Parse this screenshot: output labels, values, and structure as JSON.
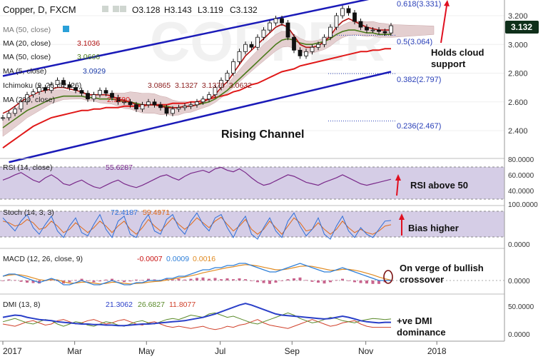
{
  "header": {
    "symbol": "Copper, D, FXCM",
    "open": "O3.128",
    "high": "H3.143",
    "low": "L3.119",
    "close": "C3.132"
  },
  "price_panel": {
    "legend": [
      {
        "label": "MA (50, close)",
        "value": ""
      },
      {
        "label": "MA (20, close)",
        "value": "3.1036"
      },
      {
        "label": "MA (50, close)",
        "value": "3.0666"
      },
      {
        "label": "MA (5, close)",
        "value": "3.0929"
      },
      {
        "label": "Ichimoku (9, 26, 52, 26)",
        "value": "3.0865  3.1327  3.1370  3.0632"
      },
      {
        "label": "MA (200, close)",
        "value": "2.9590"
      }
    ],
    "fib_levels": [
      {
        "label": "0.618(3.331)",
        "value": 3.331
      },
      {
        "label": "0.5(3.064)",
        "value": 3.064
      },
      {
        "label": "0.382(2.797)",
        "value": 2.797
      },
      {
        "label": "0.236(2.467)",
        "value": 2.467
      }
    ],
    "last_price_badge": "3.132",
    "annotations": {
      "channel": "Rising Channel",
      "cloud": "Holds cloud support"
    }
  },
  "rsi_panel": {
    "label": "RSI (14, close)",
    "value": "55.6287",
    "annotation": "RSI above 50",
    "ticks": [
      "80.0000",
      "60.0000",
      "40.0000"
    ]
  },
  "stoch_panel": {
    "label": "Stoch (14, 3, 3)",
    "values": [
      "72.4187",
      "59.4971"
    ],
    "annotation": "Bias higher",
    "ticks": [
      "100.0000",
      "0.0000"
    ]
  },
  "macd_panel": {
    "label": "MACD (12, 26, close, 9)",
    "values": [
      "-0.0007",
      "0.0009",
      "0.0016"
    ],
    "annotation": "On verge of bullish crossover",
    "ticks": [
      "0.0000"
    ]
  },
  "dmi_panel": {
    "label": "DMI (13, 8)",
    "values": [
      "21.3062",
      "26.6827",
      "11.8077"
    ],
    "annotation": "+ve DMI dominance",
    "ticks": [
      "50.0000",
      "0.0000"
    ]
  },
  "colors": {
    "price_candle": "#111111",
    "ma_red": "#b01010",
    "ma_olive": "#4a7a1a",
    "ma200": "#e01818",
    "channel": "#1a1ab8",
    "cloud": "#e4cfd0",
    "rsi_band": "#d5cde6",
    "rsi_line": "#7a2a8a",
    "stoch_blue": "#2e6fd8",
    "stoch_orange": "#e06a1a",
    "macd_blue": "#2e7fd8",
    "macd_orange": "#e08a20",
    "dmi_blue": "#2a3fc8",
    "dmi_green": "#5a8a2a",
    "dmi_red": "#d0402a",
    "badge_bg": "#0f2f1a",
    "annotation_arrow": "#e01020"
  },
  "chart_data": {
    "type": "line",
    "title": "Copper, D, FXCM",
    "x_ticks": [
      "2017",
      "Mar",
      "May",
      "Jul",
      "Sep",
      "Nov",
      "2018"
    ],
    "y_ticks": [
      3.2,
      3.0,
      2.8,
      2.6,
      2.4
    ],
    "y_range": [
      2.18,
      3.33
    ],
    "ohlc_last": {
      "open": 3.128,
      "high": 3.143,
      "low": 3.119,
      "close": 3.132
    },
    "price_series": [
      2.49,
      2.52,
      2.55,
      2.6,
      2.65,
      2.67,
      2.7,
      2.68,
      2.72,
      2.75,
      2.72,
      2.7,
      2.68,
      2.66,
      2.62,
      2.65,
      2.68,
      2.66,
      2.63,
      2.6,
      2.6,
      2.58,
      2.55,
      2.58,
      2.6,
      2.58,
      2.56,
      2.52,
      2.55,
      2.56,
      2.57,
      2.58,
      2.6,
      2.62,
      2.65,
      2.7,
      2.75,
      2.8,
      2.88,
      2.95,
      3.0,
      2.98,
      3.05,
      3.1,
      3.15,
      3.18,
      3.15,
      3.05,
      2.96,
      2.92,
      2.95,
      2.98,
      3.0,
      3.05,
      3.12,
      3.2,
      3.25,
      3.22,
      3.16,
      3.12,
      3.1,
      3.1,
      3.09,
      3.08,
      3.13
    ],
    "ma_red": [
      2.52,
      2.54,
      2.57,
      2.6,
      2.63,
      2.65,
      2.67,
      2.68,
      2.69,
      2.7,
      2.7,
      2.69,
      2.68,
      2.67,
      2.65,
      2.65,
      2.65,
      2.65,
      2.64,
      2.62,
      2.61,
      2.6,
      2.58,
      2.58,
      2.58,
      2.58,
      2.57,
      2.56,
      2.56,
      2.56,
      2.57,
      2.57,
      2.58,
      2.6,
      2.62,
      2.65,
      2.7,
      2.74,
      2.8,
      2.86,
      2.92,
      2.96,
      3.0,
      3.04,
      3.08,
      3.12,
      3.14,
      3.12,
      3.06,
      3.0,
      2.98,
      2.98,
      2.99,
      3.02,
      3.06,
      3.12,
      3.16,
      3.18,
      3.16,
      3.14,
      3.12,
      3.11,
      3.1,
      3.1,
      3.1
    ],
    "ma_olive": [
      2.42,
      2.45,
      2.48,
      2.51,
      2.54,
      2.56,
      2.58,
      2.6,
      2.62,
      2.63,
      2.64,
      2.64,
      2.64,
      2.64,
      2.63,
      2.63,
      2.62,
      2.62,
      2.62,
      2.61,
      2.6,
      2.6,
      2.59,
      2.58,
      2.58,
      2.58,
      2.57,
      2.57,
      2.56,
      2.56,
      2.57,
      2.57,
      2.58,
      2.59,
      2.6,
      2.62,
      2.65,
      2.68,
      2.72,
      2.76,
      2.8,
      2.84,
      2.88,
      2.92,
      2.96,
      3.0,
      3.03,
      3.04,
      3.03,
      3.01,
      3.0,
      3.0,
      3.01,
      3.02,
      3.04,
      3.07,
      3.09,
      3.1,
      3.1,
      3.09,
      3.08,
      3.08,
      3.07,
      3.07,
      3.07
    ],
    "ma200": [
      2.28,
      2.31,
      2.34,
      2.37,
      2.4,
      2.43,
      2.45,
      2.47,
      2.49,
      2.5,
      2.51,
      2.52,
      2.53,
      2.54,
      2.54,
      2.55,
      2.55,
      2.56,
      2.56,
      2.56,
      2.57,
      2.57,
      2.57,
      2.57,
      2.58,
      2.58,
      2.58,
      2.58,
      2.59,
      2.59,
      2.59,
      2.6,
      2.6,
      2.61,
      2.62,
      2.63,
      2.64,
      2.65,
      2.67,
      2.68,
      2.7,
      2.72,
      2.73,
      2.75,
      2.77,
      2.79,
      2.81,
      2.82,
      2.83,
      2.85,
      2.86,
      2.87,
      2.88,
      2.89,
      2.9,
      2.91,
      2.92,
      2.93,
      2.94,
      2.95,
      2.95,
      2.96,
      2.96,
      2.97,
      2.97
    ],
    "channel_upper": [
      [
        0,
        2.78
      ],
      [
        62,
        3.33
      ]
    ],
    "channel_lower": [
      [
        1,
        2.18
      ],
      [
        64,
        2.81
      ]
    ],
    "rsi": [
      55,
      58,
      62,
      65,
      60,
      55,
      52,
      58,
      62,
      57,
      50,
      48,
      52,
      55,
      50,
      46,
      44,
      48,
      52,
      55,
      50,
      47,
      45,
      48,
      52,
      56,
      60,
      62,
      58,
      55,
      60,
      64,
      66,
      68,
      65,
      70,
      72,
      68,
      66,
      70,
      65,
      58,
      52,
      48,
      50,
      54,
      58,
      62,
      60,
      56,
      52,
      50,
      48,
      52,
      55,
      58,
      62,
      58,
      54,
      50,
      48,
      50,
      52,
      54,
      56
    ],
    "stoch_k": [
      80,
      60,
      40,
      70,
      90,
      50,
      30,
      60,
      85,
      40,
      20,
      55,
      80,
      35,
      25,
      60,
      90,
      45,
      20,
      70,
      85,
      30,
      20,
      65,
      90,
      40,
      30,
      75,
      90,
      50,
      30,
      70,
      95,
      60,
      40,
      80,
      90,
      50,
      20,
      60,
      85,
      30,
      15,
      50,
      80,
      40,
      20,
      70,
      95,
      55,
      25,
      45,
      80,
      30,
      15,
      55,
      85,
      40,
      20,
      50,
      30,
      20,
      45,
      70,
      72
    ],
    "stoch_d": [
      70,
      65,
      55,
      60,
      75,
      65,
      45,
      50,
      70,
      55,
      35,
      45,
      65,
      50,
      35,
      50,
      70,
      55,
      35,
      55,
      70,
      45,
      30,
      50,
      75,
      55,
      40,
      60,
      80,
      60,
      45,
      60,
      80,
      65,
      50,
      70,
      82,
      60,
      40,
      55,
      75,
      45,
      30,
      45,
      70,
      50,
      30,
      55,
      80,
      65,
      40,
      45,
      65,
      45,
      30,
      45,
      70,
      50,
      35,
      45,
      35,
      30,
      40,
      55,
      59
    ],
    "macd": [
      0.02,
      0.03,
      0.03,
      0.02,
      0.01,
      0.0,
      -0.01,
      0.0,
      0.01,
      0.0,
      -0.02,
      -0.02,
      -0.01,
      0.0,
      -0.01,
      -0.02,
      -0.02,
      -0.01,
      0.0,
      -0.01,
      -0.02,
      -0.02,
      -0.01,
      -0.01,
      0.0,
      0.0,
      0.0,
      0.01,
      0.01,
      0.02,
      0.02,
      0.03,
      0.04,
      0.05,
      0.05,
      0.06,
      0.06,
      0.07,
      0.07,
      0.08,
      0.08,
      0.07,
      0.06,
      0.05,
      0.04,
      0.04,
      0.05,
      0.06,
      0.07,
      0.08,
      0.07,
      0.06,
      0.05,
      0.04,
      0.04,
      0.05,
      0.06,
      0.05,
      0.04,
      0.03,
      0.02,
      0.01,
      0.0,
      0.0,
      0.0
    ],
    "macd_signal": [
      0.02,
      0.025,
      0.028,
      0.026,
      0.02,
      0.012,
      0.004,
      0.0,
      0.004,
      0.003,
      -0.006,
      -0.012,
      -0.012,
      -0.008,
      -0.008,
      -0.012,
      -0.016,
      -0.014,
      -0.008,
      -0.009,
      -0.013,
      -0.016,
      -0.014,
      -0.012,
      -0.008,
      -0.005,
      -0.003,
      0.002,
      0.006,
      0.012,
      0.016,
      0.022,
      0.028,
      0.036,
      0.042,
      0.048,
      0.054,
      0.06,
      0.064,
      0.07,
      0.074,
      0.072,
      0.068,
      0.062,
      0.056,
      0.05,
      0.05,
      0.054,
      0.06,
      0.066,
      0.068,
      0.066,
      0.06,
      0.054,
      0.048,
      0.048,
      0.052,
      0.052,
      0.048,
      0.042,
      0.034,
      0.026,
      0.016,
      0.008,
      0.002
    ],
    "dmi_adx": [
      30,
      32,
      34,
      33,
      30,
      28,
      26,
      25,
      24,
      22,
      21,
      20,
      19,
      18,
      18,
      17,
      17,
      16,
      16,
      15,
      15,
      16,
      17,
      18,
      18,
      19,
      20,
      21,
      22,
      23,
      24,
      26,
      28,
      30,
      33,
      36,
      40,
      44,
      48,
      52,
      55,
      52,
      48,
      44,
      40,
      36,
      34,
      33,
      32,
      31,
      30,
      29,
      28,
      27,
      28,
      30,
      32,
      30,
      27,
      24,
      22,
      21,
      20,
      21,
      21
    ],
    "dmi_plus": [
      22,
      25,
      28,
      24,
      20,
      18,
      22,
      26,
      24,
      18,
      14,
      18,
      22,
      20,
      16,
      14,
      18,
      22,
      20,
      16,
      14,
      18,
      22,
      24,
      20,
      18,
      22,
      26,
      28,
      26,
      30,
      34,
      32,
      30,
      36,
      38,
      34,
      30,
      32,
      28,
      24,
      20,
      18,
      22,
      26,
      30,
      34,
      38,
      34,
      28,
      24,
      20,
      22,
      26,
      30,
      28,
      24,
      22,
      20,
      24,
      26,
      28,
      27,
      26,
      27
    ],
    "dmi_minus": [
      18,
      16,
      14,
      18,
      22,
      24,
      20,
      16,
      18,
      24,
      26,
      22,
      18,
      20,
      24,
      26,
      22,
      18,
      20,
      24,
      26,
      22,
      18,
      16,
      20,
      22,
      18,
      14,
      12,
      14,
      12,
      10,
      12,
      14,
      10,
      8,
      10,
      14,
      12,
      16,
      18,
      22,
      26,
      20,
      16,
      14,
      12,
      10,
      14,
      18,
      22,
      26,
      22,
      18,
      14,
      16,
      20,
      22,
      24,
      18,
      14,
      12,
      12,
      12,
      12
    ]
  }
}
